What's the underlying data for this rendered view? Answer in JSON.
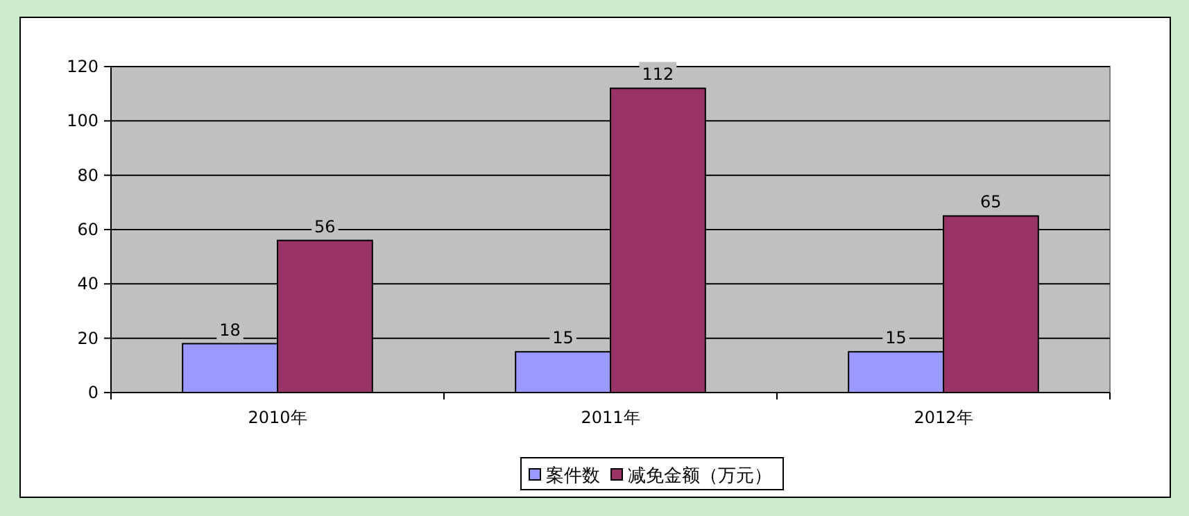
{
  "chart_data": {
    "type": "bar",
    "categories": [
      "2010年",
      "2011年",
      "2012年"
    ],
    "series": [
      {
        "name": "案件数",
        "color": "#9999ff",
        "values": [
          18,
          15,
          15
        ]
      },
      {
        "name": "减免金额（万元）",
        "color": "#993366",
        "values": [
          56,
          112,
          65
        ]
      }
    ],
    "ylim": [
      0,
      120
    ],
    "yticks": [
      0,
      20,
      40,
      60,
      80,
      100,
      120
    ],
    "grid": "y",
    "legend": "bottom",
    "data_labels": true
  }
}
